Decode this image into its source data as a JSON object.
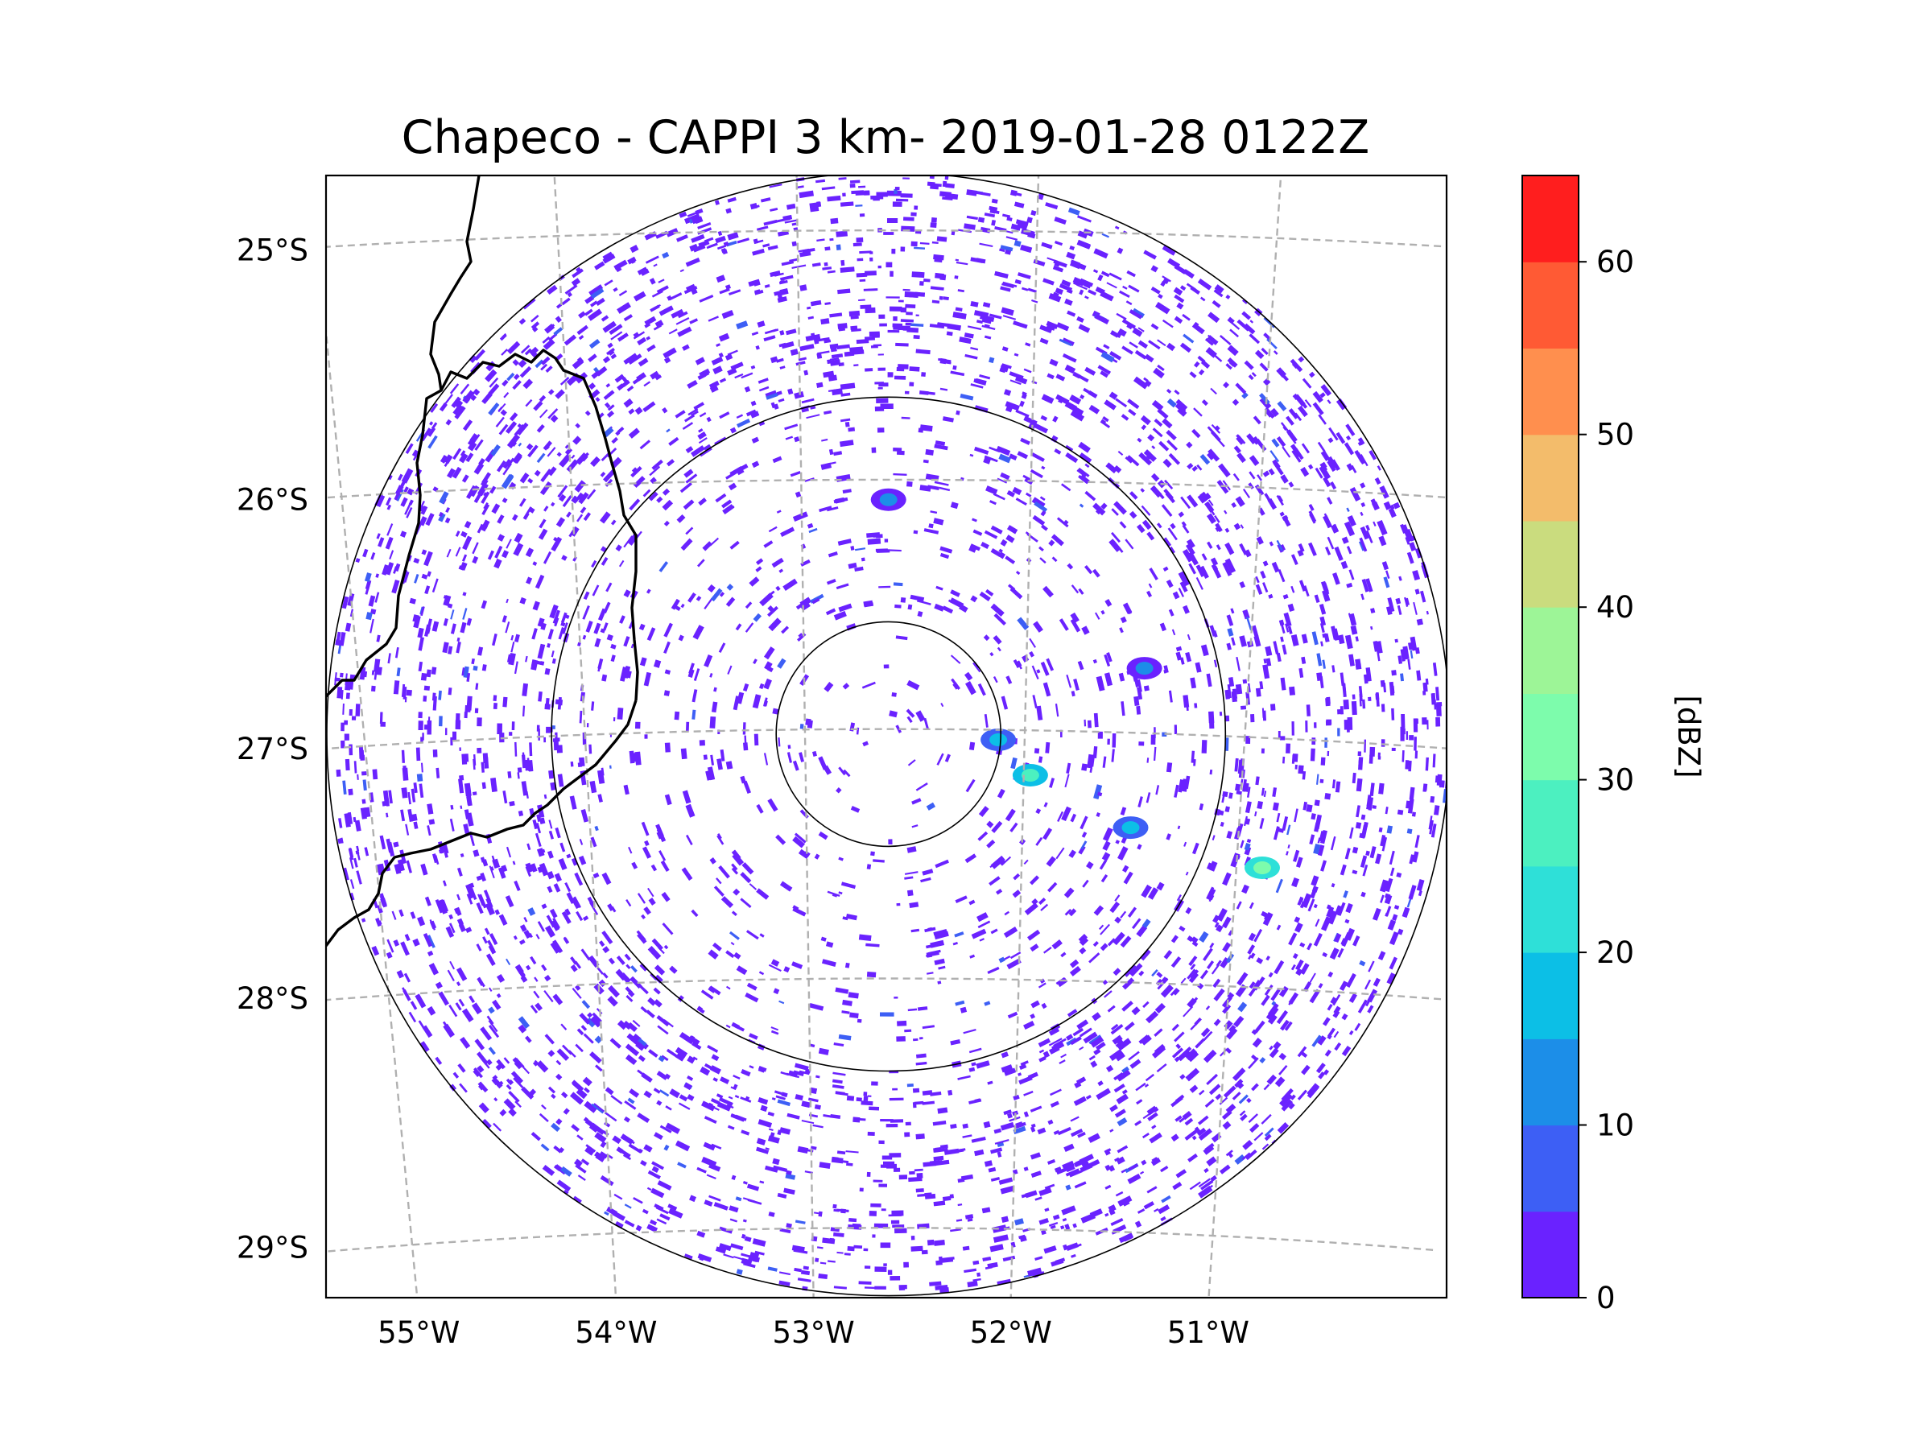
{
  "figure": {
    "title": "Chapeco - CAPPI 3 km- 2019-01-28 0122Z"
  },
  "map": {
    "extent_lon": [
      -55.18,
      -50.08
    ],
    "extent_lat": [
      -29.28,
      -24.78
    ],
    "radar_center": {
      "lon": -52.62,
      "lat": -27.02
    },
    "range_rings_km": [
      50,
      150,
      250
    ],
    "lon_ticks": [
      {
        "value": -55,
        "label": "55°W"
      },
      {
        "value": -54,
        "label": "54°W"
      },
      {
        "value": -53,
        "label": "53°W"
      },
      {
        "value": -52,
        "label": "52°W"
      },
      {
        "value": -51,
        "label": "51°W"
      }
    ],
    "lat_ticks": [
      {
        "value": -25,
        "label": "25°S"
      },
      {
        "value": -26,
        "label": "26°S"
      },
      {
        "value": -27,
        "label": "27°S"
      },
      {
        "value": -28,
        "label": "28°S"
      },
      {
        "value": -29,
        "label": "29°S"
      }
    ]
  },
  "chart_data": {
    "type": "heatmap",
    "title": "Chapeco - CAPPI 3 km- 2019-01-28 0122Z",
    "variable": "Reflectivity",
    "units_label": "[dBZ]",
    "value_range": [
      0,
      65
    ],
    "description": "Weak echoes (0-5 dBZ) scattered across the 150-250 km annulus, sparser within 150 km; isolated cores 15-30 dBZ east of the radar near 52°W 27.2°S and 50.9°W 27.5°S.",
    "features": [
      {
        "lon": -51.97,
        "lat": -27.18,
        "dbz": 25
      },
      {
        "lon": -52.12,
        "lat": -27.04,
        "dbz": 15
      },
      {
        "lon": -50.88,
        "lat": -27.52,
        "dbz": 30
      },
      {
        "lon": -51.5,
        "lat": -27.38,
        "dbz": 15
      },
      {
        "lon": -51.47,
        "lat": -26.74,
        "dbz": 10
      },
      {
        "lon": -52.62,
        "lat": -26.08,
        "dbz": 10
      }
    ]
  },
  "colorbar": {
    "label": "[dBZ]",
    "levels": [
      0,
      5,
      10,
      15,
      20,
      25,
      30,
      35,
      40,
      45,
      50,
      55,
      60,
      65
    ],
    "colors": [
      "#6a22ff",
      "#3d5ff5",
      "#1c8ee8",
      "#0cbfe6",
      "#2ee0d8",
      "#4cf0c0",
      "#7dfcac",
      "#9df597",
      "#cadc7e",
      "#f3bc6b",
      "#ff8f4e",
      "#ff5a34",
      "#ff1e1e"
    ],
    "ticks": [
      {
        "value": 0,
        "label": "0"
      },
      {
        "value": 10,
        "label": "10"
      },
      {
        "value": 20,
        "label": "20"
      },
      {
        "value": 30,
        "label": "30"
      },
      {
        "value": 40,
        "label": "40"
      },
      {
        "value": 50,
        "label": "50"
      },
      {
        "value": 60,
        "label": "60"
      }
    ]
  }
}
